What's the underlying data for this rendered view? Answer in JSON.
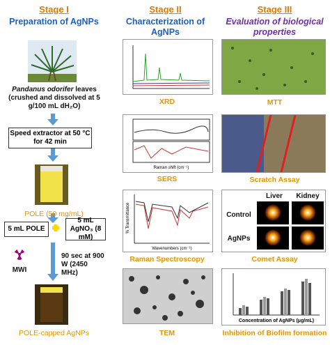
{
  "stages": [
    {
      "title": "Stage I",
      "subtitle": "Preparation of AgNPs"
    },
    {
      "title": "Stage II",
      "subtitle": "Characterization of AgNPs"
    },
    {
      "title": "Stage III",
      "subtitle": "Evaluation of biological properties"
    }
  ],
  "preparation": {
    "leaves_species": "Pandanus odorifer",
    "leaves_text": "leaves (crushed and dissolved at 5 g/100 mL dH₂O)",
    "extractor": "Speed extractor at 50 °C for 42 min",
    "extract": "POLE (50 mg/mL)",
    "reagent_1": "5 mL POLE",
    "reagent_2": "5 mL AgNO₃ (8 mM)",
    "mwi": "MWI",
    "mwi_conditions": "90 sec at 900 W (2450 MHz)",
    "product": "POLE-capped AgNPs"
  },
  "characterization": [
    "XRD",
    "SERS",
    "Raman Spectroscopy",
    "TEM"
  ],
  "characterization_axes": {
    "sers_x": "Raman shift (cm⁻¹)",
    "ftir_x": "Wavenumbers (cm⁻¹)",
    "ftir_y": "% Transmittance"
  },
  "biology": [
    "MTT",
    "Scratch Assay",
    "Comet Assay",
    "Inhibition of Biofilm formation"
  ],
  "comet": {
    "columns": [
      "Liver",
      "Kidney"
    ],
    "rows": [
      "Control",
      "AgNPs"
    ]
  },
  "biofilm_axes": {
    "x": "Concentration of AgNPs (μg/mL)"
  }
}
